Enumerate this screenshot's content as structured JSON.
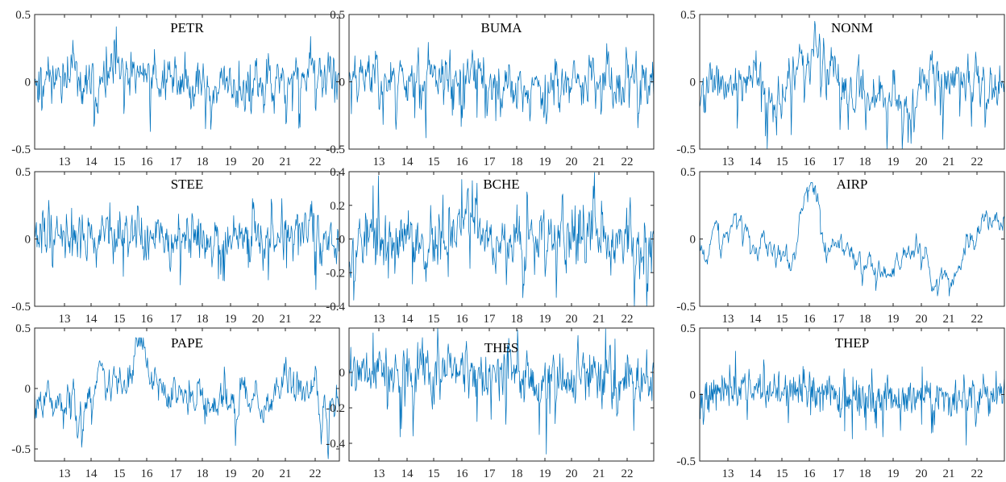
{
  "figure": {
    "line_color": "#0072BD",
    "axis_color": "#262626"
  },
  "chart_data": [
    {
      "type": "line",
      "title": "PETR",
      "x_ticks": [
        "13",
        "14",
        "15",
        "16",
        "17",
        "18",
        "19",
        "20",
        "21",
        "22"
      ],
      "y_ticks": [
        "0.5",
        "0",
        "-0.5"
      ],
      "ylim": [
        -0.5,
        0.5
      ],
      "series": [
        {
          "seed": 11,
          "ar": 0.55,
          "noise": 0.095,
          "base": 0.0,
          "drift": [
            [
              0,
              0.05
            ],
            [
              0.3,
              0.0
            ],
            [
              0.36,
              0.08
            ],
            [
              0.6,
              -0.05
            ],
            [
              0.8,
              0.0
            ],
            [
              1,
              0.05
            ]
          ],
          "clip": [
            -0.48,
            0.45
          ]
        }
      ]
    },
    {
      "type": "line",
      "title": "BUMA",
      "x_ticks": [
        "13",
        "14",
        "15",
        "16",
        "17",
        "18",
        "19",
        "20",
        "21",
        "22"
      ],
      "y_ticks": [
        "0.5",
        "0",
        "-0.5"
      ],
      "ylim": [
        -0.5,
        0.5
      ],
      "series": [
        {
          "seed": 23,
          "ar": 0.5,
          "noise": 0.1,
          "base": 0.0,
          "drift": [
            [
              0,
              0.05
            ],
            [
              0.2,
              0.05
            ],
            [
              0.36,
              0.05
            ],
            [
              0.6,
              -0.05
            ],
            [
              0.8,
              0.0
            ],
            [
              1,
              0.0
            ]
          ],
          "clip": [
            -0.48,
            0.42
          ]
        }
      ]
    },
    {
      "type": "line",
      "title": "NONM",
      "x_ticks": [
        "13",
        "14",
        "15",
        "16",
        "17",
        "18",
        "19",
        "20",
        "21",
        "22"
      ],
      "y_ticks": [
        "0.5",
        "0",
        "-0.5"
      ],
      "ylim": [
        -0.5,
        0.5
      ],
      "series": [
        {
          "seed": 37,
          "ar": 0.6,
          "noise": 0.1,
          "base": 0.0,
          "drift": [
            [
              0,
              0.0
            ],
            [
              0.3,
              -0.05
            ],
            [
              0.38,
              0.25
            ],
            [
              0.45,
              0.0
            ],
            [
              0.65,
              -0.1
            ],
            [
              0.85,
              0.05
            ],
            [
              1,
              0.0
            ]
          ],
          "clip": [
            -0.5,
            0.45
          ]
        }
      ]
    },
    {
      "type": "line",
      "title": "STEE",
      "x_ticks": [
        "13",
        "14",
        "15",
        "16",
        "17",
        "18",
        "19",
        "20",
        "21",
        "22"
      ],
      "y_ticks": [
        "0.5",
        "0",
        "-0.5"
      ],
      "ylim": [
        -0.5,
        0.5
      ],
      "series": [
        {
          "seed": 41,
          "ar": 0.45,
          "noise": 0.1,
          "base": 0.0,
          "drift": [
            [
              0,
              0.05
            ],
            [
              0.5,
              0.0
            ],
            [
              0.8,
              0.0
            ],
            [
              0.9,
              0.1
            ],
            [
              1,
              -0.05
            ]
          ],
          "clip": [
            -0.5,
            0.3
          ]
        }
      ]
    },
    {
      "type": "line",
      "title": "BCHE",
      "x_ticks": [
        "13",
        "14",
        "15",
        "16",
        "17",
        "18",
        "19",
        "20",
        "21",
        "22"
      ],
      "y_ticks": [
        "0.4",
        "0.2",
        "0",
        "-0.2",
        "-0.4"
      ],
      "ylim": [
        -0.4,
        0.4
      ],
      "series": [
        {
          "seed": 53,
          "ar": 0.45,
          "noise": 0.11,
          "base": 0.0,
          "drift": [
            [
              0,
              0.0
            ],
            [
              0.33,
              0.0
            ],
            [
              0.4,
              0.2
            ],
            [
              0.45,
              0.0
            ],
            [
              0.8,
              0.0
            ],
            [
              1,
              0.0
            ]
          ],
          "clip": [
            -0.4,
            0.4
          ]
        }
      ]
    },
    {
      "type": "line",
      "title": "AIRP",
      "x_ticks": [
        "13",
        "14",
        "15",
        "16",
        "17",
        "18",
        "19",
        "20",
        "21",
        "22"
      ],
      "y_ticks": [
        "0.5",
        "0",
        "-0.5"
      ],
      "ylim": [
        -0.5,
        0.5
      ],
      "series": [
        {
          "seed": 67,
          "ar": 0.85,
          "noise": 0.04,
          "base": 0.0,
          "drift": [
            [
              0,
              0.05
            ],
            [
              0.15,
              0.1
            ],
            [
              0.25,
              0.0
            ],
            [
              0.3,
              -0.15
            ],
            [
              0.36,
              0.35
            ],
            [
              0.45,
              0.0
            ],
            [
              0.6,
              -0.15
            ],
            [
              0.72,
              -0.1
            ],
            [
              0.77,
              -0.3
            ],
            [
              0.85,
              -0.15
            ],
            [
              0.95,
              0.15
            ],
            [
              1,
              0.15
            ]
          ],
          "clip": [
            -0.45,
            0.42
          ]
        }
      ]
    },
    {
      "type": "line",
      "title": "PAPE",
      "x_ticks": [
        "13",
        "14",
        "15",
        "16",
        "17",
        "18",
        "19",
        "20",
        "21",
        "22"
      ],
      "y_ticks": [
        "0.5",
        "0",
        "-0.5"
      ],
      "ylim": [
        -0.6,
        0.5
      ],
      "series": [
        {
          "seed": 79,
          "ar": 0.7,
          "noise": 0.08,
          "base": 0.0,
          "drift": [
            [
              0,
              0.0
            ],
            [
              0.15,
              -0.15
            ],
            [
              0.2,
              0.1
            ],
            [
              0.3,
              0.0
            ],
            [
              0.35,
              0.35
            ],
            [
              0.42,
              -0.1
            ],
            [
              0.6,
              -0.1
            ],
            [
              0.75,
              -0.1
            ],
            [
              0.85,
              0.15
            ],
            [
              1,
              -0.2
            ]
          ],
          "clip": [
            -0.6,
            0.42
          ]
        }
      ]
    },
    {
      "type": "line",
      "title": "THES",
      "x_ticks": [
        "13",
        "14",
        "15",
        "16",
        "17",
        "18",
        "19",
        "20",
        "21",
        "22"
      ],
      "y_ticks": [
        "0",
        "-0.2",
        "-0.4"
      ],
      "ylim": [
        -0.5,
        0.25
      ],
      "series": [
        {
          "seed": 89,
          "ar": 0.4,
          "noise": 0.09,
          "base": 0.0,
          "drift": [
            [
              0,
              0.0
            ],
            [
              0.5,
              0.0
            ],
            [
              0.8,
              -0.05
            ],
            [
              1,
              -0.05
            ]
          ],
          "clip": [
            -0.5,
            0.25
          ]
        }
      ]
    },
    {
      "type": "line",
      "title": "THEP",
      "x_ticks": [
        "13",
        "14",
        "15",
        "16",
        "17",
        "18",
        "19",
        "20",
        "21",
        "22"
      ],
      "y_ticks": [
        "0.5",
        "0",
        "-0.5"
      ],
      "ylim": [
        -0.5,
        0.5
      ],
      "series": [
        {
          "seed": 97,
          "ar": 0.2,
          "noise": 0.09,
          "base": 0.0,
          "drift": [
            [
              0,
              0.0
            ],
            [
              0.33,
              0.05
            ],
            [
              0.5,
              -0.05
            ],
            [
              1,
              0.0
            ]
          ],
          "clip": [
            -0.38,
            0.42
          ]
        }
      ]
    }
  ]
}
